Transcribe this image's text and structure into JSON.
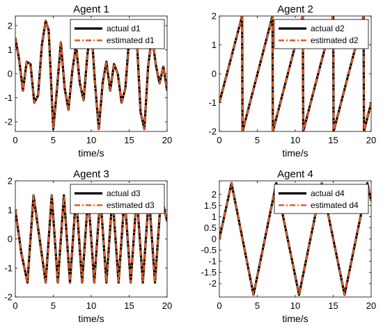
{
  "figure": {
    "series_colors": {
      "actual": "#000000",
      "estimated": "#E8591F"
    }
  },
  "chart_data": [
    {
      "type": "line",
      "title": "Agent 1",
      "xlabel": "time/s",
      "ylabel": "",
      "xlim": [
        0,
        20
      ],
      "ylim": [
        -2.4,
        2.4
      ],
      "xticks": [
        "0",
        "5",
        "10",
        "15",
        "20"
      ],
      "yticks": [
        "-2",
        "-1",
        "0",
        "1",
        "2"
      ],
      "legend_position": "top-right",
      "grid": false,
      "signal": "sum-of-sines",
      "series": [
        {
          "name": "actual d1",
          "style": "solid",
          "color": "#000000"
        },
        {
          "name": "estimated d1",
          "style": "dash-dot",
          "color": "#E8591F"
        }
      ],
      "x": [
        0,
        0.5,
        1.0,
        1.5,
        2.0,
        2.5,
        3.0,
        3.5,
        4.0,
        4.4,
        5.0,
        5.5,
        6.0,
        6.5,
        7.0,
        7.5,
        8.0,
        8.5,
        9.0,
        9.5,
        10.0,
        10.5,
        11.0,
        11.5,
        12.0,
        12.5,
        13.0,
        13.5,
        14.0,
        14.5,
        15.0,
        15.5,
        16.0,
        16.5,
        17.0,
        17.5,
        18.0,
        18.5,
        19.0,
        19.5,
        20.0
      ],
      "y": [
        1.5,
        0.6,
        -0.7,
        0.5,
        0.4,
        -1.2,
        -0.9,
        1.2,
        2.2,
        1.8,
        -2.3,
        -0.6,
        1.3,
        -0.6,
        -1.5,
        0.1,
        1.2,
        -0.4,
        -1.1,
        0.8,
        2.0,
        -0.4,
        -2.3,
        -0.4,
        0.5,
        -0.7,
        0.4,
        0.0,
        -1.2,
        -0.6,
        1.5,
        2.2,
        1.5,
        -1.6,
        -2.3,
        0.3,
        1.6,
        0.4,
        -0.4,
        0.3,
        -0.7
      ]
    },
    {
      "type": "line",
      "title": "Agent 2",
      "xlabel": "time/s",
      "ylabel": "",
      "xlim": [
        0,
        20
      ],
      "ylim": [
        -2,
        2
      ],
      "xticks": [
        "0",
        "5",
        "10",
        "15",
        "20"
      ],
      "yticks": [
        "-2",
        "-1",
        "0",
        "1",
        "2"
      ],
      "legend_position": "top-right",
      "grid": false,
      "signal": "sawtooth",
      "series": [
        {
          "name": "actual d2",
          "style": "solid",
          "color": "#000000"
        },
        {
          "name": "estimated d2",
          "style": "dash-dot",
          "color": "#E8591F"
        }
      ],
      "x": [
        0,
        3.0,
        3.05,
        7.0,
        7.05,
        11.0,
        11.05,
        15.0,
        15.05,
        19.0,
        19.05,
        20.0
      ],
      "y": [
        -1.0,
        2.0,
        -2.0,
        2.0,
        -2.0,
        2.0,
        -2.0,
        2.0,
        -2.0,
        2.0,
        -2.0,
        -1.0
      ]
    },
    {
      "type": "line",
      "title": "Agent 3",
      "xlabel": "time/s",
      "ylabel": "",
      "xlim": [
        0,
        20
      ],
      "ylim": [
        -2,
        2
      ],
      "xticks": [
        "0",
        "5",
        "10",
        "15",
        "20"
      ],
      "yticks": [
        "-2",
        "-1",
        "0",
        "1",
        "2"
      ],
      "legend_position": "top-right",
      "grid": false,
      "signal": "triangle",
      "series": [
        {
          "name": "actual d3",
          "style": "solid",
          "color": "#000000"
        },
        {
          "name": "estimated d3",
          "style": "dash-dot",
          "color": "#E8591F"
        }
      ],
      "x": [
        0,
        0.8,
        1.6,
        2.4,
        3.2,
        4.0,
        4.8,
        5.6,
        6.4,
        7.2,
        8.0,
        8.8,
        9.6,
        10.4,
        11.2,
        12.0,
        12.8,
        13.6,
        14.4,
        15.2,
        16.0,
        16.8,
        17.6,
        18.4,
        19.2,
        20.0
      ],
      "y": [
        1.0,
        -0.5,
        -1.5,
        1.5,
        0.0,
        -1.5,
        1.5,
        -1.5,
        1.5,
        -1.5,
        1.5,
        -1.5,
        1.5,
        -1.5,
        1.5,
        -1.5,
        1.5,
        -1.5,
        1.5,
        -1.5,
        1.5,
        -1.5,
        1.5,
        -1.5,
        1.5,
        0.6
      ]
    },
    {
      "type": "line",
      "title": "Agent 4",
      "xlabel": "time/s",
      "ylabel": "",
      "xlim": [
        0,
        20
      ],
      "ylim": [
        -2.6,
        2.6
      ],
      "xticks": [
        "0",
        "5",
        "10",
        "15",
        "20"
      ],
      "yticks": [
        "-2",
        "-1.5",
        "-1",
        "-0.5",
        "0",
        "0.5",
        "1",
        "1.5",
        "2"
      ],
      "legend_position": "top-right",
      "grid": false,
      "signal": "triangle",
      "series": [
        {
          "name": "actual d4",
          "style": "solid",
          "color": "#000000"
        },
        {
          "name": "estimated d4",
          "style": "dash-dot",
          "color": "#E8591F"
        }
      ],
      "x": [
        0,
        1.6,
        4.5,
        7.5,
        10.5,
        13.5,
        16.5,
        19.5,
        20.0
      ],
      "y": [
        0.0,
        2.5,
        -2.5,
        2.5,
        -2.5,
        2.5,
        -2.5,
        2.5,
        1.7
      ]
    }
  ]
}
